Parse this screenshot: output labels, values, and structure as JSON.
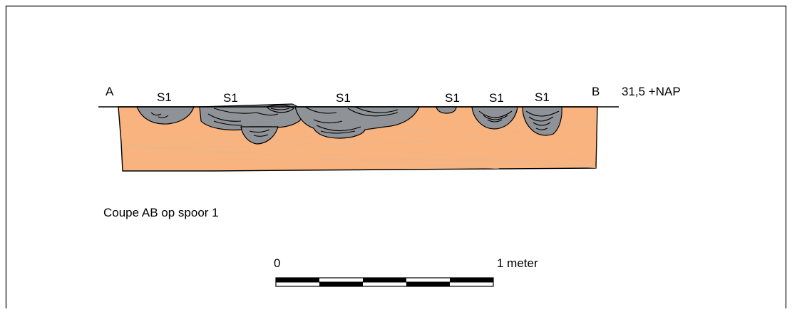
{
  "section": {
    "label_a": "A",
    "label_b": "B",
    "level": "31,5 +NAP",
    "s_labels": [
      "S1",
      "S1",
      "S1",
      "S1",
      "S1",
      "S1"
    ]
  },
  "caption": "Coupe AB op spoor 1",
  "scale_bar": {
    "start_label": "0",
    "end_label": "1 meter"
  }
}
